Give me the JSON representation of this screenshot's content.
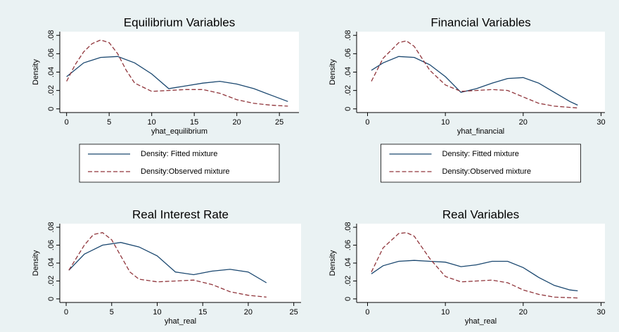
{
  "chart_data": [
    {
      "type": "line",
      "title": "Equilibrium Variables",
      "xlabel": "yhat_equilibrium",
      "ylabel": "Density",
      "xlim": [
        -0.8,
        27.3
      ],
      "xticks": [
        0,
        5,
        10,
        15,
        20,
        25
      ],
      "ylim": [
        -0.004,
        0.084
      ],
      "yticks": [
        0,
        {
          "value": 0.02,
          "label": ".02"
        },
        {
          "value": 0.04,
          "label": ".04"
        },
        {
          "value": 0.06,
          "label": ".06"
        },
        {
          "value": 0.08,
          "label": ".08"
        }
      ],
      "legend": "bottom",
      "series": [
        {
          "name": "Density: Fitted mixture",
          "color": "#1a476f",
          "line_style": "solid",
          "x": [
            0,
            2,
            4,
            6,
            8,
            10,
            12,
            14,
            16,
            18,
            20,
            22,
            24,
            26
          ],
          "values": [
            0.035,
            0.05,
            0.056,
            0.057,
            0.05,
            0.038,
            0.022,
            0.025,
            0.028,
            0.03,
            0.027,
            0.022,
            0.015,
            0.008
          ]
        },
        {
          "name": "Density:Observed mixture",
          "color": "#90353b",
          "line_style": "dashed",
          "x": [
            0,
            1,
            2,
            3,
            4,
            5,
            6,
            7,
            8,
            10,
            12,
            14,
            16,
            18,
            20,
            22,
            24,
            26
          ],
          "values": [
            0.03,
            0.048,
            0.062,
            0.071,
            0.075,
            0.072,
            0.06,
            0.042,
            0.028,
            0.019,
            0.02,
            0.021,
            0.021,
            0.017,
            0.01,
            0.006,
            0.004,
            0.003
          ]
        }
      ]
    },
    {
      "type": "line",
      "title": "Financial Variables",
      "xlabel": "yhat_financial",
      "ylabel": "Density",
      "xlim": [
        -1.4,
        30.5
      ],
      "xticks": [
        0,
        10,
        20,
        30
      ],
      "ylim": [
        -0.004,
        0.084
      ],
      "yticks": [
        0,
        {
          "value": 0.02,
          "label": ".02"
        },
        {
          "value": 0.04,
          "label": ".04"
        },
        {
          "value": 0.06,
          "label": ".06"
        },
        {
          "value": 0.08,
          "label": ".08"
        }
      ],
      "legend": "bottom",
      "series": [
        {
          "name": "Density: Fitted mixture",
          "color": "#1a476f",
          "line_style": "solid",
          "x": [
            0.5,
            2,
            4,
            6,
            8,
            10,
            12,
            14,
            16,
            18,
            20,
            22,
            24,
            26,
            27
          ],
          "values": [
            0.042,
            0.05,
            0.057,
            0.056,
            0.048,
            0.035,
            0.018,
            0.022,
            0.028,
            0.033,
            0.034,
            0.028,
            0.018,
            0.008,
            0.004
          ]
        },
        {
          "name": "Density:Observed mixture",
          "color": "#90353b",
          "line_style": "dashed",
          "x": [
            0.5,
            2,
            4,
            5,
            6,
            8,
            10,
            12,
            14,
            16,
            18,
            20,
            22,
            24,
            27
          ],
          "values": [
            0.03,
            0.055,
            0.072,
            0.074,
            0.068,
            0.042,
            0.026,
            0.019,
            0.02,
            0.021,
            0.02,
            0.013,
            0.006,
            0.003,
            0.001
          ]
        }
      ]
    },
    {
      "type": "line",
      "title": "Real Interest Rate",
      "xlabel": "yhat_real",
      "ylabel": "Density",
      "xlim": [
        -0.7,
        25.8
      ],
      "xticks": [
        0,
        5,
        10,
        15,
        20,
        25
      ],
      "ylim": [
        -0.004,
        0.084
      ],
      "yticks": [
        0,
        {
          "value": 0.02,
          "label": ".02"
        },
        {
          "value": 0.04,
          "label": ".04"
        },
        {
          "value": 0.06,
          "label": ".06"
        },
        {
          "value": 0.08,
          "label": ".08"
        }
      ],
      "series": [
        {
          "name": "Density: Fitted mixture",
          "color": "#1a476f",
          "line_style": "solid",
          "x": [
            0.3,
            2,
            4,
            6,
            8,
            10,
            12,
            14,
            16,
            18,
            20,
            22
          ],
          "values": [
            0.032,
            0.05,
            0.06,
            0.063,
            0.058,
            0.048,
            0.03,
            0.027,
            0.031,
            0.033,
            0.03,
            0.018
          ]
        },
        {
          "name": "Density:Observed mixture",
          "color": "#90353b",
          "line_style": "dashed",
          "x": [
            0.3,
            2,
            3,
            4,
            5,
            6,
            7,
            8,
            10,
            12,
            14,
            16,
            18,
            20,
            22
          ],
          "values": [
            0.032,
            0.06,
            0.072,
            0.074,
            0.066,
            0.048,
            0.03,
            0.022,
            0.019,
            0.02,
            0.021,
            0.016,
            0.008,
            0.004,
            0.002
          ]
        }
      ]
    },
    {
      "type": "line",
      "title": "Real Variables",
      "xlabel": "yhat_real",
      "ylabel": "Density",
      "xlim": [
        -1.4,
        30.5
      ],
      "xticks": [
        0,
        10,
        20,
        30
      ],
      "ylim": [
        -0.004,
        0.084
      ],
      "yticks": [
        0,
        {
          "value": 0.02,
          "label": ".02"
        },
        {
          "value": 0.04,
          "label": ".04"
        },
        {
          "value": 0.06,
          "label": ".06"
        },
        {
          "value": 0.08,
          "label": ".08"
        }
      ],
      "series": [
        {
          "name": "Density: Fitted mixture",
          "color": "#1a476f",
          "line_style": "solid",
          "x": [
            0.5,
            2,
            4,
            6,
            8,
            10,
            12,
            14,
            16,
            18,
            20,
            22,
            24,
            26,
            27
          ],
          "values": [
            0.028,
            0.037,
            0.042,
            0.043,
            0.042,
            0.041,
            0.036,
            0.038,
            0.042,
            0.042,
            0.035,
            0.024,
            0.015,
            0.01,
            0.009
          ]
        },
        {
          "name": "Density:Observed mixture",
          "color": "#90353b",
          "line_style": "dashed",
          "x": [
            0.5,
            2,
            4,
            5,
            6,
            8,
            10,
            12,
            14,
            16,
            18,
            20,
            22,
            24,
            27
          ],
          "values": [
            0.03,
            0.057,
            0.073,
            0.074,
            0.07,
            0.045,
            0.025,
            0.019,
            0.02,
            0.021,
            0.018,
            0.01,
            0.005,
            0.002,
            0.001
          ]
        }
      ]
    }
  ]
}
